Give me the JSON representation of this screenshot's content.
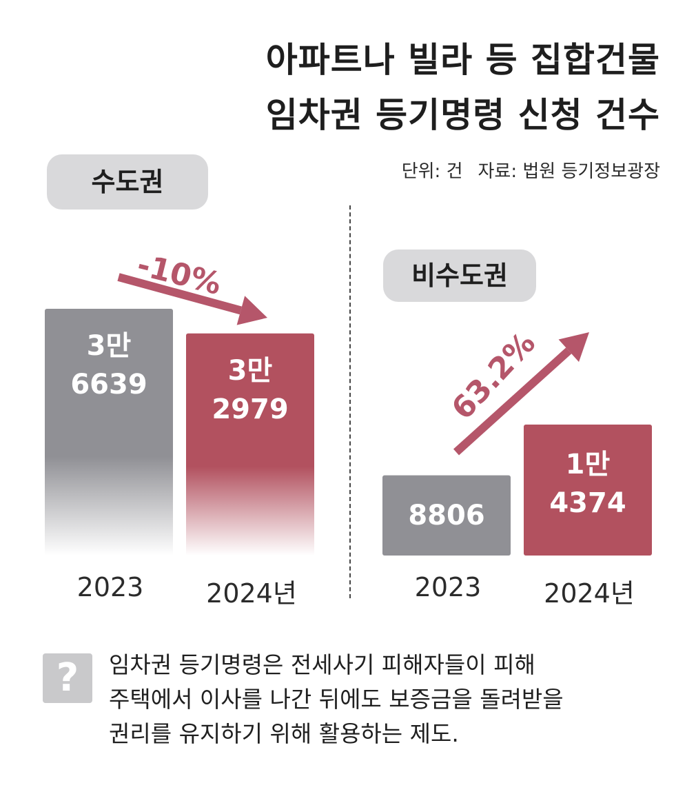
{
  "title_line1": "아파트나 빌라 등 집합건물",
  "title_line2": "임차권 등기명령 신청 건수",
  "unit_text": "단위: 건",
  "source_text": "자료: 법원 등기정보광장",
  "colors": {
    "gray_bar": "#909095",
    "red_bar": "#b2515f",
    "arrow": "#b5566a",
    "pill": "#d9d9db"
  },
  "chart_data": [
    {
      "type": "bar",
      "region": "수도권",
      "categories": [
        "2023",
        "2024년"
      ],
      "values": [
        36639,
        32979
      ],
      "value_labels": [
        [
          "3만",
          "6639"
        ],
        [
          "3만",
          "2979"
        ]
      ],
      "change": "-10%",
      "change_direction": "down"
    },
    {
      "type": "bar",
      "region": "비수도권",
      "categories": [
        "2023",
        "2024년"
      ],
      "values": [
        8806,
        14374
      ],
      "value_labels": [
        [
          "8806"
        ],
        [
          "1만",
          "4374"
        ]
      ],
      "change": "63.2%",
      "change_direction": "up"
    }
  ],
  "note": {
    "icon": "question-icon",
    "icon_glyph": "?",
    "lines": [
      "임차권 등기명령은 전세사기 피해자들이 피해",
      "주택에서 이사를 나간 뒤에도 보증금을 돌려받을",
      "권리를 유지하기 위해 활용하는 제도."
    ]
  }
}
